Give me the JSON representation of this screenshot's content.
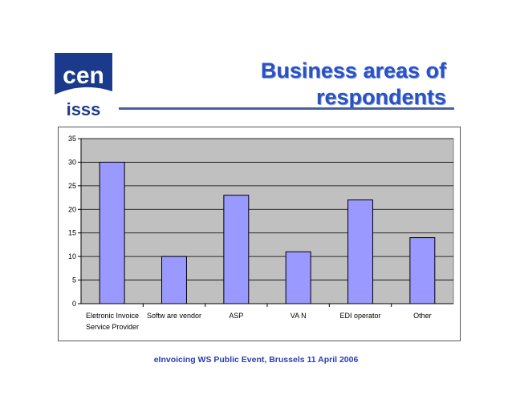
{
  "header": {
    "logo": {
      "icon": "cen-isss-logo",
      "top_text": "cen",
      "bottom_text": "isss",
      "color": "#1b3a8c"
    },
    "title_line1": "Business areas of",
    "title_line2": "respondents",
    "accent_color": "#2a52c4"
  },
  "chart_data": {
    "type": "bar",
    "categories": [
      "Eletronic Invoice Service Provider",
      "Software vendor",
      "ASP",
      "VAN",
      "EDI operator",
      "Other"
    ],
    "category_lines": [
      [
        "Eletronic Invoice",
        "Service Provider"
      ],
      [
        "Softw are vendor"
      ],
      [
        "ASP"
      ],
      [
        "VA N"
      ],
      [
        "EDI operator"
      ],
      [
        "Other"
      ]
    ],
    "values": [
      30,
      10,
      23,
      11,
      22,
      14
    ],
    "ylim": [
      0,
      35
    ],
    "yticks": [
      0,
      5,
      10,
      15,
      20,
      25,
      30,
      35
    ],
    "title": "",
    "xlabel": "",
    "ylabel": "",
    "grid": true,
    "bar_color": "#9999ff",
    "plot_background": "#c0c0c0"
  },
  "footer": {
    "text": "eInvoicing WS Public Event, Brussels 11 April 2006"
  }
}
